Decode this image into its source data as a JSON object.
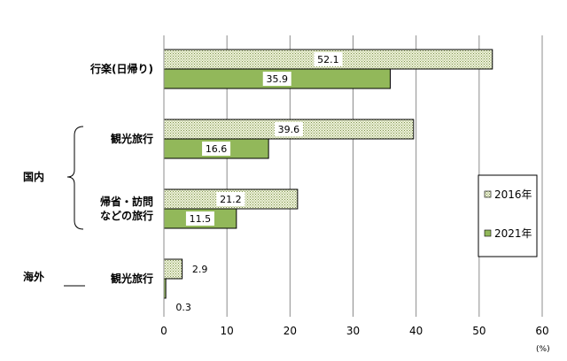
{
  "chart_data": {
    "type": "bar",
    "orientation": "horizontal",
    "categories": [
      "行楽(日帰り)",
      "観光旅行",
      "帰省・訪問などの旅行",
      "観光旅行"
    ],
    "category_lines": [
      [
        "行楽(日帰り)"
      ],
      [
        "観光旅行"
      ],
      [
        "帰省・訪問",
        "などの旅行"
      ],
      [
        "観光旅行"
      ]
    ],
    "groups": [
      {
        "label": "国内",
        "categories": [
          0,
          1,
          2
        ],
        "bracket": true
      },
      {
        "label": "海外",
        "categories": [
          3
        ],
        "bracket": false
      }
    ],
    "series": [
      {
        "name": "2016年",
        "values": [
          52.1,
          39.6,
          21.2,
          2.9
        ],
        "color": "#eef3d9",
        "pattern": "dotted"
      },
      {
        "name": "2021年",
        "values": [
          35.9,
          16.6,
          11.5,
          0.3
        ],
        "color": "#92b85a",
        "pattern": "solid"
      }
    ],
    "data_labels": [
      [
        "52.1",
        "39.6",
        "21.2",
        "2.9"
      ],
      [
        "35.9",
        "16.6",
        "11.5",
        "0.3"
      ]
    ],
    "xlim": [
      0,
      60
    ],
    "xticks": [
      0,
      10,
      20,
      30,
      40,
      50,
      60
    ],
    "unit_label": "(%)",
    "grid": true,
    "legend_position": "right"
  }
}
